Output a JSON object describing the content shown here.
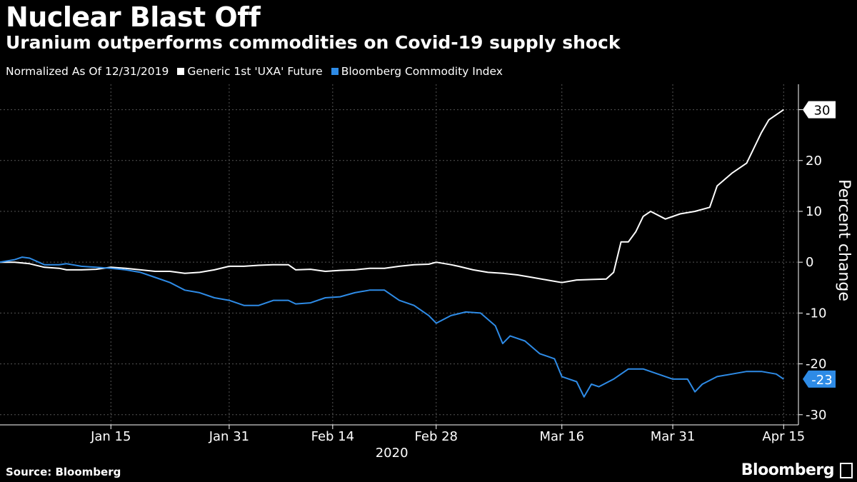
{
  "header": {
    "title": "Nuclear Blast Off",
    "subtitle": "Uranium outperforms commodities on Covid-19 supply shock"
  },
  "legend": {
    "note": "Normalized As Of 12/31/2019",
    "items": [
      {
        "label": "Generic 1st 'UXA' Future",
        "color": "#ffffff"
      },
      {
        "label": "Bloomberg Commodity Index",
        "color": "#2e8be6"
      }
    ]
  },
  "footer": {
    "source": "Source: Bloomberg",
    "brand": "Bloomberg"
  },
  "chart_data": {
    "type": "line",
    "title": "Nuclear Blast Off",
    "subtitle": "Uranium outperforms commodities on Covid-19 supply shock",
    "ylabel": "Percent change",
    "xlabel": "",
    "year_label": "2020",
    "x_range": [
      "2019-12-31",
      "2020-04-17"
    ],
    "ylim": [
      -32,
      35
    ],
    "y_ticks": [
      30,
      20,
      10,
      0,
      -10,
      -20,
      -30
    ],
    "x_ticks": [
      {
        "date": "2020-01-15",
        "label": "Jan 15"
      },
      {
        "date": "2020-01-31",
        "label": "Jan 31"
      },
      {
        "date": "2020-02-14",
        "label": "Feb 14"
      },
      {
        "date": "2020-02-28",
        "label": "Feb 28"
      },
      {
        "date": "2020-03-16",
        "label": "Mar 16"
      },
      {
        "date": "2020-03-31",
        "label": "Mar 31"
      },
      {
        "date": "2020-04-15",
        "label": "Apr 15"
      }
    ],
    "grid": true,
    "series": [
      {
        "name": "Generic 1st 'UXA' Future",
        "color": "#ffffff",
        "end_label": "30",
        "points": [
          [
            "2019-12-31",
            0
          ],
          [
            "2020-01-02",
            0
          ],
          [
            "2020-01-04",
            -0.3
          ],
          [
            "2020-01-06",
            -1
          ],
          [
            "2020-01-08",
            -1.2
          ],
          [
            "2020-01-09",
            -1.5
          ],
          [
            "2020-01-11",
            -1.5
          ],
          [
            "2020-01-13",
            -1.4
          ],
          [
            "2020-01-15",
            -1
          ],
          [
            "2020-01-17",
            -1.2
          ],
          [
            "2020-01-19",
            -1.5
          ],
          [
            "2020-01-21",
            -1.8
          ],
          [
            "2020-01-23",
            -1.8
          ],
          [
            "2020-01-25",
            -2.2
          ],
          [
            "2020-01-27",
            -2
          ],
          [
            "2020-01-29",
            -1.5
          ],
          [
            "2020-01-31",
            -0.8
          ],
          [
            "2020-02-02",
            -0.8
          ],
          [
            "2020-02-04",
            -0.6
          ],
          [
            "2020-02-06",
            -0.5
          ],
          [
            "2020-02-08",
            -0.5
          ],
          [
            "2020-02-09",
            -1.5
          ],
          [
            "2020-02-11",
            -1.4
          ],
          [
            "2020-02-13",
            -1.8
          ],
          [
            "2020-02-15",
            -1.6
          ],
          [
            "2020-02-17",
            -1.5
          ],
          [
            "2020-02-19",
            -1.2
          ],
          [
            "2020-02-21",
            -1.2
          ],
          [
            "2020-02-23",
            -0.8
          ],
          [
            "2020-02-25",
            -0.5
          ],
          [
            "2020-02-27",
            -0.4
          ],
          [
            "2020-02-28",
            0
          ],
          [
            "2020-03-01",
            -0.5
          ],
          [
            "2020-03-02",
            -0.8
          ],
          [
            "2020-03-04",
            -1.5
          ],
          [
            "2020-03-06",
            -2
          ],
          [
            "2020-03-08",
            -2.2
          ],
          [
            "2020-03-10",
            -2.5
          ],
          [
            "2020-03-12",
            -3
          ],
          [
            "2020-03-14",
            -3.5
          ],
          [
            "2020-03-16",
            -4
          ],
          [
            "2020-03-18",
            -3.5
          ],
          [
            "2020-03-20",
            -3.4
          ],
          [
            "2020-03-22",
            -3.3
          ],
          [
            "2020-03-23",
            -2
          ],
          [
            "2020-03-24",
            4
          ],
          [
            "2020-03-25",
            4
          ],
          [
            "2020-03-26",
            6
          ],
          [
            "2020-03-27",
            9
          ],
          [
            "2020-03-28",
            10
          ],
          [
            "2020-03-30",
            8.5
          ],
          [
            "2020-04-01",
            9.5
          ],
          [
            "2020-04-03",
            10
          ],
          [
            "2020-04-05",
            10.8
          ],
          [
            "2020-04-06",
            15
          ],
          [
            "2020-04-08",
            17.5
          ],
          [
            "2020-04-10",
            19.5
          ],
          [
            "2020-04-12",
            25.5
          ],
          [
            "2020-04-13",
            28
          ],
          [
            "2020-04-15",
            30
          ]
        ]
      },
      {
        "name": "Bloomberg Commodity Index",
        "color": "#2e8be6",
        "end_label": "-23",
        "points": [
          [
            "2019-12-31",
            0
          ],
          [
            "2020-01-02",
            0.5
          ],
          [
            "2020-01-03",
            1
          ],
          [
            "2020-01-04",
            0.8
          ],
          [
            "2020-01-06",
            -0.5
          ],
          [
            "2020-01-08",
            -0.5
          ],
          [
            "2020-01-09",
            -0.3
          ],
          [
            "2020-01-11",
            -0.8
          ],
          [
            "2020-01-13",
            -1
          ],
          [
            "2020-01-15",
            -1.2
          ],
          [
            "2020-01-17",
            -1.5
          ],
          [
            "2020-01-19",
            -2
          ],
          [
            "2020-01-21",
            -3
          ],
          [
            "2020-01-23",
            -4
          ],
          [
            "2020-01-25",
            -5.5
          ],
          [
            "2020-01-27",
            -6
          ],
          [
            "2020-01-29",
            -7
          ],
          [
            "2020-01-31",
            -7.5
          ],
          [
            "2020-02-02",
            -8.5
          ],
          [
            "2020-02-04",
            -8.5
          ],
          [
            "2020-02-06",
            -7.5
          ],
          [
            "2020-02-08",
            -7.5
          ],
          [
            "2020-02-09",
            -8.2
          ],
          [
            "2020-02-11",
            -8
          ],
          [
            "2020-02-13",
            -7
          ],
          [
            "2020-02-15",
            -6.8
          ],
          [
            "2020-02-17",
            -6
          ],
          [
            "2020-02-19",
            -5.5
          ],
          [
            "2020-02-21",
            -5.5
          ],
          [
            "2020-02-23",
            -7.5
          ],
          [
            "2020-02-25",
            -8.5
          ],
          [
            "2020-02-27",
            -10.5
          ],
          [
            "2020-02-28",
            -12
          ],
          [
            "2020-03-01",
            -10.5
          ],
          [
            "2020-03-03",
            -9.8
          ],
          [
            "2020-03-05",
            -10
          ],
          [
            "2020-03-07",
            -12.5
          ],
          [
            "2020-03-08",
            -16
          ],
          [
            "2020-03-09",
            -14.5
          ],
          [
            "2020-03-11",
            -15.5
          ],
          [
            "2020-03-13",
            -18
          ],
          [
            "2020-03-15",
            -19
          ],
          [
            "2020-03-16",
            -22.5
          ],
          [
            "2020-03-18",
            -23.5
          ],
          [
            "2020-03-19",
            -26.5
          ],
          [
            "2020-03-20",
            -24
          ],
          [
            "2020-03-21",
            -24.5
          ],
          [
            "2020-03-23",
            -23
          ],
          [
            "2020-03-25",
            -21
          ],
          [
            "2020-03-27",
            -21
          ],
          [
            "2020-03-29",
            -22
          ],
          [
            "2020-03-31",
            -23
          ],
          [
            "2020-04-02",
            -23
          ],
          [
            "2020-04-03",
            -25.5
          ],
          [
            "2020-04-04",
            -24
          ],
          [
            "2020-04-06",
            -22.5
          ],
          [
            "2020-04-08",
            -22
          ],
          [
            "2020-04-10",
            -21.5
          ],
          [
            "2020-04-12",
            -21.5
          ],
          [
            "2020-04-14",
            -22
          ],
          [
            "2020-04-15",
            -23
          ]
        ]
      }
    ]
  }
}
